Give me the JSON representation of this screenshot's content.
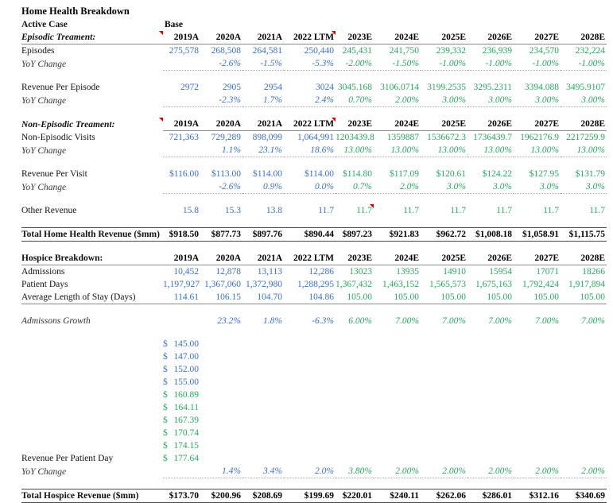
{
  "meta": {
    "title": "Home Health Breakdown",
    "subtitle": "Active Case",
    "scenario": "Base"
  },
  "colors": {
    "actual_values": "#3E70B6",
    "estimate_values": "#2FA263",
    "comment_marker": "#C00000",
    "text": "#000000"
  },
  "column_ids": [
    "2019A",
    "2020A",
    "2021A",
    "2022LTM",
    "2023E",
    "2024E",
    "2025E",
    "2026E",
    "2027E",
    "2028E"
  ],
  "columns": [
    "2019A",
    "2020A",
    "2021A",
    "2022 LTM",
    "2023E",
    "2024E",
    "2025E",
    "2026E",
    "2027E",
    "2028E"
  ],
  "rows": [
    {
      "name": "active-case",
      "type": "subtitle",
      "label": "Active Case",
      "cells": [
        "Base",
        "",
        "",
        "",
        "",
        "",
        "",
        "",
        "",
        ""
      ]
    },
    {
      "name": "episodic-header",
      "type": "header",
      "label": "Episodic Treament:",
      "border": "full",
      "label_marker": true,
      "markers": [
        3
      ],
      "cells": []
    },
    {
      "name": "episodes",
      "type": "data",
      "label": "Episodes",
      "cells": [
        "275,578",
        "268,508",
        "264,581",
        "250,440",
        "245,431",
        "241,750",
        "239,332",
        "236,939",
        "234,570",
        "232,224"
      ]
    },
    {
      "name": "episodes-yoy",
      "type": "yoy",
      "label": "YoY Change",
      "border": "cols",
      "cells": [
        "",
        "-2.6%",
        "-1.5%",
        "-5.3%",
        "-2.00%",
        "-1.50%",
        "-1.00%",
        "-1.00%",
        "-1.00%",
        "-1.00%"
      ]
    },
    {
      "type": "spacer"
    },
    {
      "name": "revenue-per-episode",
      "type": "data",
      "label": "Revenue Per Episode",
      "cells": [
        "2972",
        "2905",
        "2954",
        "3024",
        "3045.168",
        "3106.0714",
        "3199.2535",
        "3295.2311",
        "3394.088",
        "3495.9107"
      ]
    },
    {
      "name": "revenue-per-episode-yoy",
      "type": "yoy",
      "label": "YoY Change",
      "border": "cols",
      "cells": [
        "",
        "-2.3%",
        "1.7%",
        "2.4%",
        "0.70%",
        "2.00%",
        "3.00%",
        "3.00%",
        "3.00%",
        "3.00%"
      ]
    },
    {
      "type": "spacer"
    },
    {
      "name": "non-episodic-header",
      "type": "header",
      "label": "Non-Episodic Treament:",
      "border": "cols",
      "label_marker": true,
      "markers": [
        3
      ],
      "cells": []
    },
    {
      "name": "non-episodic-visits",
      "type": "data",
      "label": "Non-Episodic Visits",
      "cells": [
        "721,363",
        "729,289",
        "898,099",
        "1,064,991",
        "1203439.8",
        "1359887",
        "1536672.3",
        "1736439.7",
        "1962176.9",
        "2217259.9"
      ]
    },
    {
      "name": "non-episodic-visits-yoy",
      "type": "yoy",
      "label": "YoY Change",
      "border": "cols",
      "cells": [
        "",
        "1.1%",
        "23.1%",
        "18.6%",
        "13.00%",
        "13.00%",
        "13.00%",
        "13.00%",
        "13.00%",
        "13.00%"
      ]
    },
    {
      "type": "spacer"
    },
    {
      "name": "revenue-per-visit",
      "type": "data",
      "label": "Revenue Per Visit",
      "cells": [
        "$116.00",
        "$113.00",
        "$114.00",
        "$114.00",
        "$114.80",
        "$117.09",
        "$120.61",
        "$124.22",
        "$127.95",
        "$131.79"
      ]
    },
    {
      "name": "revenue-per-visit-yoy",
      "type": "yoy",
      "label": "YoY Change",
      "border": "cols",
      "cells": [
        "",
        "-2.6%",
        "0.9%",
        "0.0%",
        "0.7%",
        "2.0%",
        "3.0%",
        "3.0%",
        "3.0%",
        "3.0%"
      ]
    },
    {
      "type": "spacer"
    },
    {
      "name": "other-revenue",
      "type": "data",
      "label": "Other Revenue",
      "markers": [
        4
      ],
      "cells": [
        "15.8",
        "15.3",
        "13.8",
        "11.7",
        "11.7",
        "11.7",
        "11.7",
        "11.7",
        "11.7",
        "11.7"
      ]
    },
    {
      "type": "spacer"
    },
    {
      "name": "total-home-health-revenue",
      "type": "total",
      "label": "Total Home Health Revenue ($mm)",
      "cells": [
        "$918.50",
        "$877.73",
        "$897.76",
        "$890.44",
        "$897.23",
        "$921.83",
        "$962.72",
        "$1,008.18",
        "$1,058.91",
        "$1,115.75"
      ]
    },
    {
      "type": "spacer"
    },
    {
      "name": "hospice-header",
      "type": "header2",
      "label": "Hospice Breakdown:",
      "border": "full",
      "cells": []
    },
    {
      "name": "admissions",
      "type": "data",
      "label": "Admissions",
      "cells": [
        "10,452",
        "12,878",
        "13,113",
        "12,286",
        "13023",
        "13935",
        "14910",
        "15954",
        "17071",
        "18266"
      ]
    },
    {
      "name": "patient-days",
      "type": "data",
      "label": "Patient Days",
      "cells": [
        "1,197,927",
        "1,367,060",
        "1,372,980",
        "1,288,295",
        "1,367,432",
        "1,463,152",
        "1,565,573",
        "1,675,163",
        "1,792,424",
        "1,917,894"
      ]
    },
    {
      "name": "avg-length-of-stay",
      "type": "data",
      "label": "Average Length of Stay (Days)",
      "border": "full",
      "cells": [
        "114.61",
        "106.15",
        "104.70",
        "104.86",
        "105.00",
        "105.00",
        "105.00",
        "105.00",
        "105.00",
        "105.00"
      ]
    },
    {
      "type": "spacer"
    },
    {
      "name": "admissions-growth",
      "type": "growth",
      "label": "Admissons Growth",
      "cells": [
        "",
        "23.2%",
        "1.8%",
        "-6.3%",
        "6.00%",
        "7.00%",
        "7.00%",
        "7.00%",
        "7.00%",
        "7.00%"
      ]
    },
    {
      "type": "spacer"
    },
    {
      "name": "revenue-per-patient-day",
      "type": "acct",
      "label": "Revenue Per Patient Day",
      "currency": "$",
      "cells": [
        "145.00",
        "147.00",
        "152.00",
        "155.00",
        "160.89",
        "164.11",
        "167.39",
        "170.74",
        "174.15",
        "177.64"
      ]
    },
    {
      "name": "revenue-per-patient-day-yoy",
      "type": "yoy",
      "label": "YoY Change",
      "border": "cols",
      "cells": [
        "",
        "1.4%",
        "3.4%",
        "2.0%",
        "3.80%",
        "2.00%",
        "2.00%",
        "2.00%",
        "2.00%",
        "2.00%"
      ]
    },
    {
      "type": "spacer"
    },
    {
      "name": "total-hospice-revenue",
      "type": "total",
      "label": "Total Hospice Revenue ($mm)",
      "cells": [
        "$173.70",
        "$200.96",
        "$208.69",
        "$199.69",
        "$220.01",
        "$240.11",
        "$262.06",
        "$286.01",
        "$312.16",
        "$340.69"
      ]
    }
  ]
}
